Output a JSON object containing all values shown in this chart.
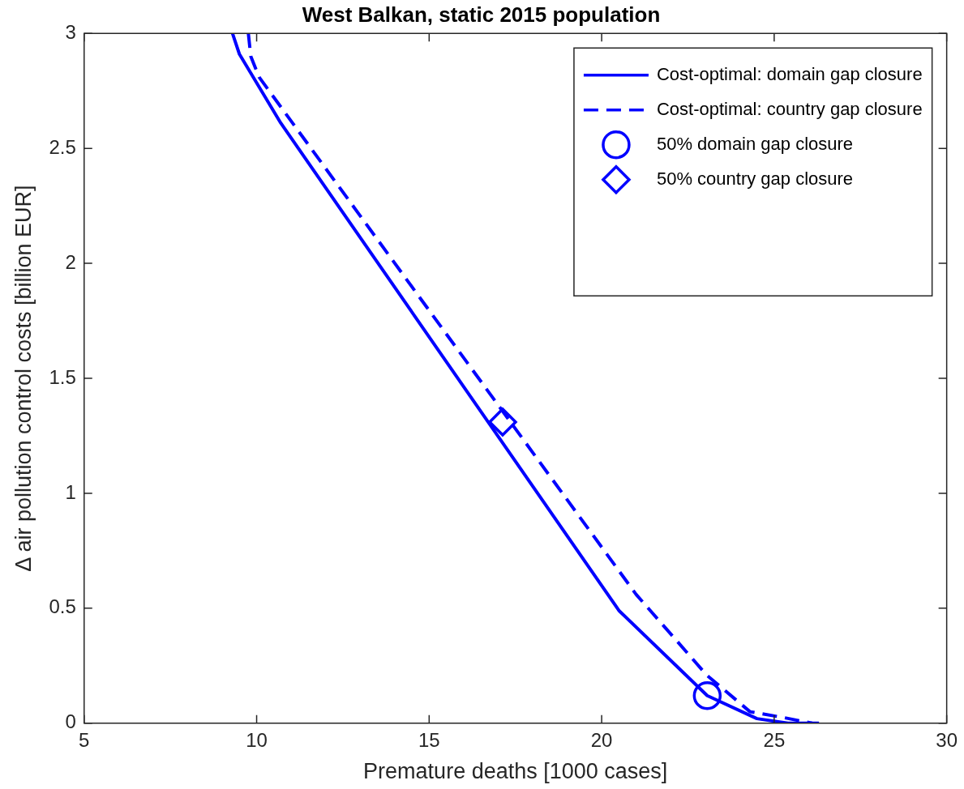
{
  "chart_data": {
    "type": "line",
    "title": "West Balkan, static 2015 population",
    "xlabel": "Premature deaths [1000 cases]",
    "ylabel": "Δ air pollution control costs [billion EUR]",
    "xlim": [
      5,
      30
    ],
    "xticks": [
      5,
      10,
      15,
      20,
      25,
      30
    ],
    "ylim": [
      0,
      3
    ],
    "yticks": [
      0,
      0.5,
      1,
      1.5,
      2,
      2.5,
      3
    ],
    "grid": false,
    "legend": "top right",
    "series": [
      {
        "name": "Cost-optimal: domain gap closure",
        "line_style": "solid",
        "marker": "none",
        "color": "#0000ff",
        "x": [
          9.3,
          9.5,
          10.7,
          20.5,
          23.06,
          24.5,
          25.4,
          26.3
        ],
        "values": [
          3,
          2.91,
          2.61,
          0.49,
          0.12,
          0.02,
          0,
          0
        ]
      },
      {
        "name": "Cost-optimal: country gap closure",
        "line_style": "dashed",
        "marker": "none",
        "color": "#0000ff",
        "x": [
          9.76,
          9.83,
          10.07,
          21.0,
          23.04,
          24.3,
          25.26,
          26.1
        ],
        "values": [
          3,
          2.9,
          2.81,
          0.56,
          0.21,
          0.05,
          0.025,
          0
        ]
      },
      {
        "name": "50% domain gap closure",
        "type": "scatter",
        "marker": "circle",
        "color": "#0000ff",
        "x": [
          23.06
        ],
        "values": [
          0.12
        ]
      },
      {
        "name": "50% country gap closure",
        "type": "scatter",
        "marker": "diamond",
        "color": "#0000ff",
        "x": [
          17.13
        ],
        "values": [
          1.31
        ]
      }
    ]
  }
}
